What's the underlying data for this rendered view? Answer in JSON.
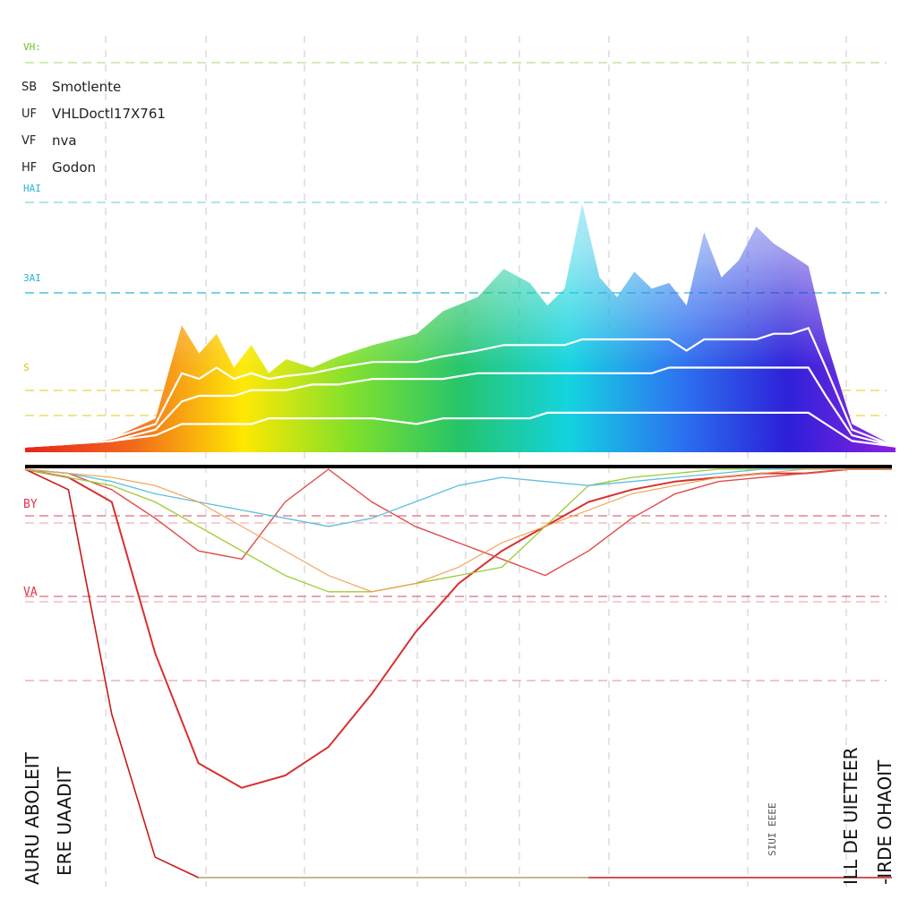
{
  "legend": {
    "header": "VH:",
    "items": [
      {
        "code": "SB",
        "label": "Smotlente"
      },
      {
        "code": "UF",
        "label": "VHLDoctl17X761"
      },
      {
        "code": "VF",
        "label": "nva"
      },
      {
        "code": "HF",
        "label": "Godon"
      }
    ]
  },
  "top_panel_tags": [
    "HAI",
    "3AI",
    "S"
  ],
  "bottom_panel_tags": [
    "BY",
    "VA"
  ],
  "side_labels": {
    "left_outer": "AURU ABOLEIT",
    "left_inner": "ERE UAADIT",
    "right_small": "SIUI EEEE",
    "right_inner": "ILL DE UIETEER",
    "right_outer": "-IRDE OHAOIT"
  },
  "colors": {
    "spectrum": [
      "#e8231c",
      "#f26a1b",
      "#ffe800",
      "#7fe02a",
      "#24c46a",
      "#12d3e0",
      "#2a74f0",
      "#2b1fd8",
      "#8a1fe0"
    ],
    "header_tag": "#6cbf2a",
    "cyan_tag": "#29b6d6",
    "yellow_tag": "#d9c000",
    "red_tag": "#e0344a",
    "axis": "#000000"
  },
  "chart_data": [
    {
      "type": "area",
      "x": [
        0,
        5,
        10,
        15,
        18,
        20,
        22,
        24,
        26,
        28,
        30,
        33,
        36,
        40,
        45,
        48,
        52,
        55,
        58,
        60,
        62,
        64,
        66,
        68,
        70,
        72,
        74,
        76,
        78,
        80,
        82,
        84,
        86,
        88,
        90,
        92,
        95,
        100
      ],
      "series": [
        {
          "name": "Smotlente",
          "values": [
            2,
            3,
            5,
            12,
            45,
            35,
            42,
            30,
            38,
            28,
            33,
            30,
            34,
            38,
            42,
            50,
            55,
            65,
            60,
            52,
            58,
            88,
            62,
            55,
            64,
            58,
            60,
            52,
            78,
            62,
            68,
            80,
            74,
            70,
            66,
            40,
            10,
            2
          ]
        },
        {
          "name": "VHLDoctl17X761",
          "values": [
            2,
            3,
            5,
            10,
            28,
            26,
            30,
            26,
            28,
            26,
            27,
            28,
            30,
            32,
            32,
            34,
            36,
            38,
            38,
            38,
            38,
            40,
            40,
            40,
            40,
            40,
            40,
            36,
            40,
            40,
            40,
            40,
            42,
            42,
            44,
            30,
            8,
            2
          ]
        },
        {
          "name": "nva",
          "values": [
            2,
            3,
            4,
            8,
            18,
            20,
            20,
            20,
            22,
            22,
            22,
            24,
            24,
            26,
            26,
            26,
            28,
            28,
            28,
            28,
            28,
            28,
            28,
            28,
            28,
            28,
            30,
            30,
            30,
            30,
            30,
            30,
            30,
            30,
            30,
            20,
            6,
            2
          ]
        },
        {
          "name": "Godon",
          "values": [
            2,
            3,
            4,
            6,
            10,
            10,
            10,
            10,
            10,
            12,
            12,
            12,
            12,
            12,
            10,
            12,
            12,
            12,
            12,
            14,
            14,
            14,
            14,
            14,
            14,
            14,
            14,
            14,
            14,
            14,
            14,
            14,
            14,
            14,
            14,
            10,
            4,
            2
          ]
        }
      ],
      "ylim": [
        0,
        100
      ],
      "grid": true
    },
    {
      "type": "line",
      "x": [
        0,
        5,
        10,
        15,
        20,
        25,
        30,
        35,
        40,
        45,
        50,
        55,
        60,
        65,
        70,
        75,
        80,
        85,
        90,
        95,
        100
      ],
      "series": [
        {
          "values": [
            100,
            95,
            40,
            5,
            0,
            0,
            0,
            0,
            0,
            0,
            0,
            0,
            0,
            0,
            0,
            0,
            0,
            0,
            0,
            0,
            0
          ]
        },
        {
          "values": [
            100,
            98,
            92,
            55,
            28,
            22,
            25,
            32,
            45,
            60,
            72,
            80,
            86,
            92,
            95,
            97,
            98,
            99,
            99,
            100,
            100
          ]
        },
        {
          "values": [
            100,
            99,
            95,
            88,
            80,
            78,
            92,
            100,
            92,
            86,
            82,
            78,
            74,
            80,
            88,
            94,
            97,
            98,
            99,
            100,
            100
          ]
        },
        {
          "values": [
            100,
            98,
            96,
            92,
            86,
            80,
            74,
            70,
            70,
            72,
            74,
            76,
            86,
            96,
            98,
            99,
            100,
            100,
            100,
            100,
            100
          ]
        },
        {
          "values": [
            100,
            99,
            97,
            94,
            92,
            90,
            88,
            86,
            88,
            92,
            96,
            98,
            97,
            96,
            97,
            98,
            99,
            100,
            100,
            100,
            100
          ]
        },
        {
          "values": [
            100,
            99,
            98,
            96,
            92,
            86,
            80,
            74,
            70,
            72,
            76,
            82,
            86,
            90,
            94,
            96,
            98,
            99,
            100,
            100,
            100
          ]
        }
      ],
      "ylim": [
        0,
        100
      ],
      "grid": true
    }
  ]
}
